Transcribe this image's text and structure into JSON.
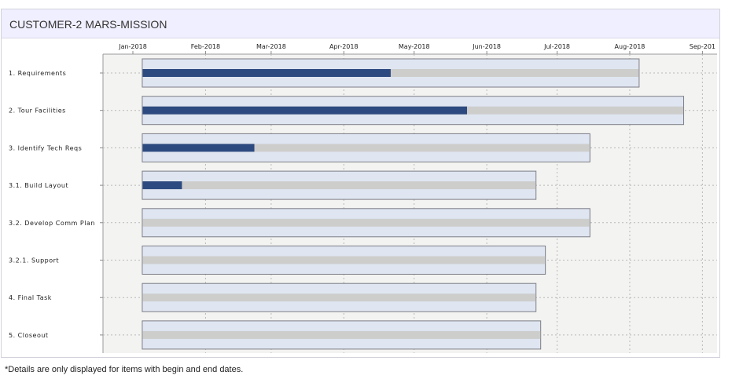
{
  "header": {
    "title": "CUSTOMER-2 MARS-MISSION"
  },
  "footnote": "*Details are only displayed for items with begin and end dates.",
  "colors": {
    "plot_background": "#f3f4f1",
    "bar_fill": "#dfe6f1",
    "bar_border": "#7c7c86",
    "track": "#cdcdcc",
    "progress": "#2d4a80",
    "grid": "#b8b8b8"
  },
  "chart_data": {
    "type": "gantt",
    "x_ticks": [
      "Jan-2018",
      "Feb-2018",
      "Mar-2018",
      "Apr-2018",
      "May-2018",
      "Jun-2018",
      "Jul-2018",
      "Aug-2018",
      "Sep-201"
    ],
    "xlim": [
      "2018-01-01",
      "2018-09-01"
    ],
    "grid": true,
    "tasks": [
      {
        "label": "1. Requirements",
        "start": "2018-01-05",
        "end": "2018-08-05",
        "progress": 0.5
      },
      {
        "label": "2. Tour Facilities",
        "start": "2018-01-05",
        "end": "2018-08-24",
        "progress": 0.6
      },
      {
        "label": "3. Identify Tech Reqs",
        "start": "2018-01-05",
        "end": "2018-07-15",
        "progress": 0.25
      },
      {
        "label": "3.1. Build Layout",
        "start": "2018-01-05",
        "end": "2018-06-22",
        "progress": 0.1
      },
      {
        "label": "3.2. Develop Comm Plan",
        "start": "2018-01-05",
        "end": "2018-07-15",
        "progress": 0
      },
      {
        "label": "3.2.1. Support",
        "start": "2018-01-05",
        "end": "2018-06-26",
        "progress": 0
      },
      {
        "label": "4. Final Task",
        "start": "2018-01-05",
        "end": "2018-06-22",
        "progress": 0
      },
      {
        "label": "5. Closeout",
        "start": "2018-01-05",
        "end": "2018-06-24",
        "progress": 0
      }
    ]
  }
}
